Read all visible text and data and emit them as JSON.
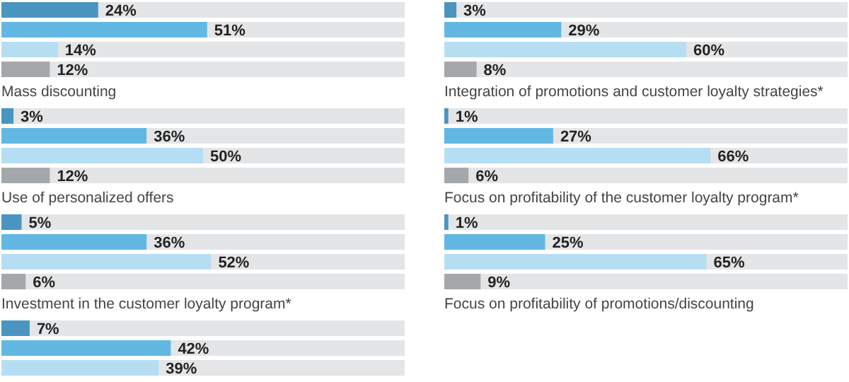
{
  "chart_data": [
    {
      "type": "bar",
      "orientation": "horizontal",
      "xlabel": "Mass discounting",
      "categories": [
        null,
        null,
        null,
        null
      ],
      "values": [
        24,
        51,
        14,
        12
      ],
      "value_labels": [
        "24%",
        "51%",
        "14%",
        "12%"
      ],
      "colors": [
        "#4a95c0",
        "#62b8e3",
        "#b5def3",
        "#a5a8ab"
      ],
      "xlim": [
        0,
        100
      ]
    },
    {
      "type": "bar",
      "orientation": "horizontal",
      "xlabel": "Integration of promotions and customer loyalty strategies*",
      "categories": [
        null,
        null,
        null,
        null
      ],
      "values": [
        3,
        29,
        60,
        8
      ],
      "value_labels": [
        "3%",
        "29%",
        "60%",
        "8%"
      ],
      "colors": [
        "#4a95c0",
        "#62b8e3",
        "#b5def3",
        "#a5a8ab"
      ],
      "xlim": [
        0,
        100
      ]
    },
    {
      "type": "bar",
      "orientation": "horizontal",
      "xlabel": "Use of personalized offers",
      "categories": [
        null,
        null,
        null,
        null
      ],
      "values": [
        3,
        36,
        50,
        12
      ],
      "value_labels": [
        "3%",
        "36%",
        "50%",
        "12%"
      ],
      "colors": [
        "#4a95c0",
        "#62b8e3",
        "#b5def3",
        "#a5a8ab"
      ],
      "xlim": [
        0,
        100
      ]
    },
    {
      "type": "bar",
      "orientation": "horizontal",
      "xlabel": "Focus on profitability of the customer loyalty program*",
      "categories": [
        null,
        null,
        null,
        null
      ],
      "values": [
        1,
        27,
        66,
        6
      ],
      "value_labels": [
        "1%",
        "27%",
        "66%",
        "6%"
      ],
      "colors": [
        "#4a95c0",
        "#62b8e3",
        "#b5def3",
        "#a5a8ab"
      ],
      "xlim": [
        0,
        100
      ]
    },
    {
      "type": "bar",
      "orientation": "horizontal",
      "xlabel": "Investment in the customer loyalty program*",
      "categories": [
        null,
        null,
        null,
        null
      ],
      "values": [
        5,
        36,
        52,
        6
      ],
      "value_labels": [
        "5%",
        "36%",
        "52%",
        "6%"
      ],
      "colors": [
        "#4a95c0",
        "#62b8e3",
        "#b5def3",
        "#a5a8ab"
      ],
      "xlim": [
        0,
        100
      ]
    },
    {
      "type": "bar",
      "orientation": "horizontal",
      "xlabel": "Focus on profitability of promotions/discounting",
      "categories": [
        null,
        null,
        null,
        null
      ],
      "values": [
        1,
        25,
        65,
        9
      ],
      "value_labels": [
        "1%",
        "25%",
        "65%",
        "9%"
      ],
      "colors": [
        "#4a95c0",
        "#62b8e3",
        "#b5def3",
        "#a5a8ab"
      ],
      "xlim": [
        0,
        100
      ]
    },
    {
      "type": "bar",
      "orientation": "horizontal",
      "categories": [
        null,
        null,
        null
      ],
      "values": [
        7,
        42,
        39
      ],
      "value_labels": [
        "7%",
        "42%",
        "39%"
      ],
      "colors": [
        "#4a95c0",
        "#62b8e3",
        "#b5def3"
      ],
      "xlim": [
        0,
        100
      ]
    }
  ]
}
